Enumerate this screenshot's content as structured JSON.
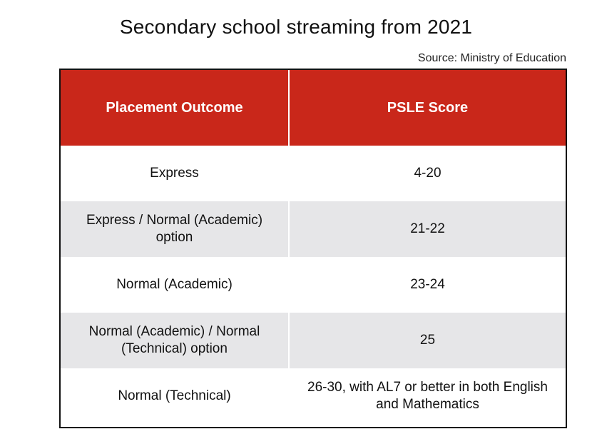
{
  "chart_data": {
    "type": "table",
    "title": "Secondary school streaming from 2021",
    "source": "Source: Ministry of Education",
    "columns": [
      "Placement Outcome",
      "PSLE Score"
    ],
    "rows": [
      [
        "Express",
        "4-20"
      ],
      [
        "Express / Normal (Academic) option",
        "21-22"
      ],
      [
        "Normal (Academic)",
        "23-24"
      ],
      [
        "Normal (Academic) / Normal (Technical) option",
        "25"
      ],
      [
        "Normal (Technical)",
        "26-30, with AL7 or better in both English and Mathematics"
      ]
    ],
    "colors": {
      "header_background": "#c9271a",
      "header_text": "#ffffff",
      "alt_row_background": "#e6e6e8"
    }
  }
}
